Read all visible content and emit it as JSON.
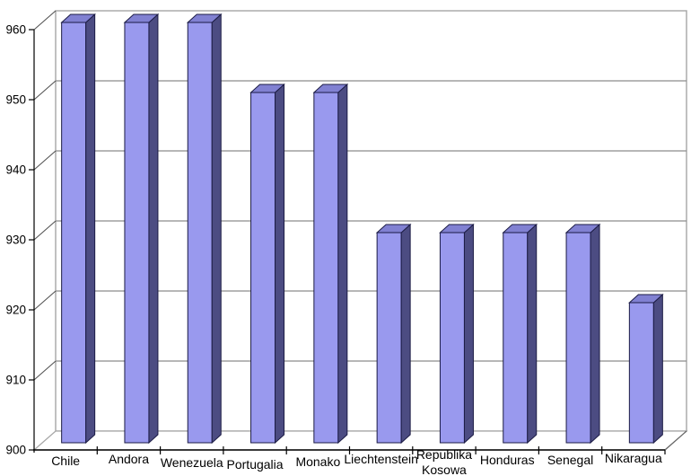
{
  "chart_data": {
    "type": "bar",
    "projection": "3d",
    "title": "",
    "xlabel": "",
    "ylabel": "",
    "categories": [
      "Chile",
      "Andora",
      "Wenezuela",
      "Portugalia",
      "Monako",
      "Liechtenstein",
      "Republika Kosowa",
      "Honduras",
      "Senegal",
      "Nikaragua"
    ],
    "values": [
      960,
      960,
      960,
      950,
      950,
      930,
      930,
      930,
      930,
      920
    ],
    "ylim": [
      900,
      960
    ],
    "ytick_step": 10,
    "ytick_labels": [
      "900",
      "910",
      "920",
      "930",
      "940",
      "950",
      "960"
    ],
    "grid": true,
    "legend_position": "none",
    "category_label_dy": [
      0,
      -2,
      2,
      4,
      1,
      -2,
      0,
      -1,
      -1,
      -3
    ],
    "colors": {
      "background": "#FFFFFF",
      "bar_front": "#9999EE",
      "bar_top": "#8181D2",
      "bar_side": "#4C4C82",
      "bar_border": "#1C1C45",
      "wall_border": "#A6A6A6",
      "gridline": "#8C8C8C",
      "wall_diagonal": "#4D4D4D",
      "floor_edge": "#666666",
      "axis": "#000000",
      "text": "#000000"
    }
  }
}
